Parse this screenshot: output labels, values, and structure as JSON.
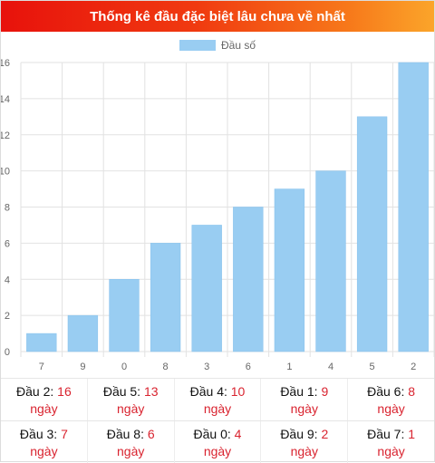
{
  "title": "Thống kê đầu đặc biệt lâu chưa về nhất",
  "colors": {
    "bar": "#99cdf2",
    "bar_edge": "#86c1ec",
    "accent": "#d9232f",
    "grid": "#e2e2e2"
  },
  "chart_data": {
    "type": "bar",
    "categories": [
      "7",
      "9",
      "0",
      "8",
      "3",
      "6",
      "1",
      "4",
      "5",
      "2"
    ],
    "series": [
      {
        "name": "Đầu số",
        "values": [
          1,
          2,
          4,
          6,
          7,
          8,
          9,
          10,
          13,
          16
        ]
      }
    ],
    "ylim": [
      0,
      16
    ],
    "yticks": [
      0,
      2,
      4,
      6,
      8,
      10,
      12,
      14,
      16
    ],
    "ytick_labels": [
      "0",
      "2",
      "4",
      "6",
      "8",
      "10",
      "12",
      "14",
      "16"
    ],
    "grid": true,
    "legend": "top-center"
  },
  "stats": {
    "unit": "ngày",
    "rows": [
      [
        {
          "label": "Đầu 2:",
          "value": "16"
        },
        {
          "label": "Đầu 5:",
          "value": "13"
        },
        {
          "label": "Đầu 4:",
          "value": "10"
        },
        {
          "label": "Đầu 1:",
          "value": "9"
        },
        {
          "label": "Đầu 6:",
          "value": "8"
        }
      ],
      [
        {
          "label": "Đầu 3:",
          "value": "7"
        },
        {
          "label": "Đầu 8:",
          "value": "6"
        },
        {
          "label": "Đầu 0:",
          "value": "4"
        },
        {
          "label": "Đầu 9:",
          "value": "2"
        },
        {
          "label": "Đầu 7:",
          "value": "1"
        }
      ]
    ]
  }
}
